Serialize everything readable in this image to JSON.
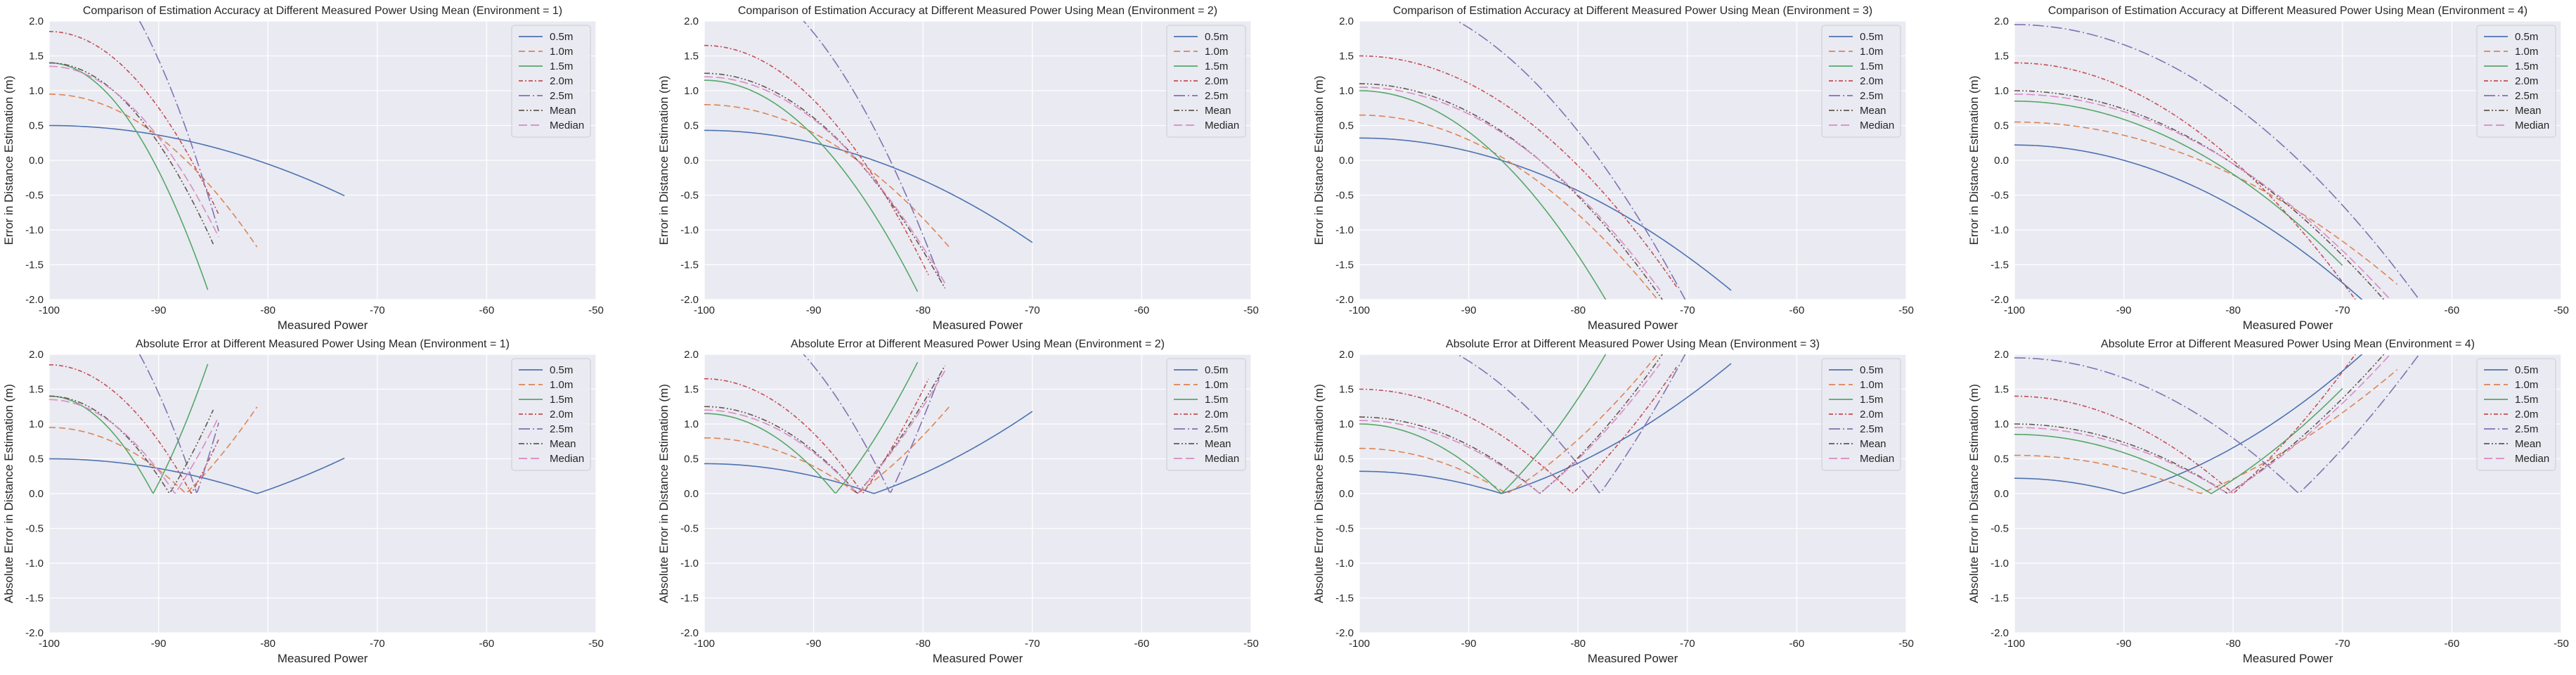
{
  "figure": {
    "rows": 2,
    "cols": 4,
    "facecolor": "#eaeaf2",
    "gridcolor": "#ffffff",
    "textcolor": "#262626"
  },
  "series_styles": [
    {
      "name": "0.5m",
      "color": "#4c72b0",
      "dash": ""
    },
    {
      "name": "1.0m",
      "color": "#dd8452",
      "dash": "9,5"
    },
    {
      "name": "1.5m",
      "color": "#55a868",
      "dash": ""
    },
    {
      "name": "2.0m",
      "color": "#c44e52",
      "dash": "6,3,2,3"
    },
    {
      "name": "2.5m",
      "color": "#8172b3",
      "dash": "16,4,2,4"
    },
    {
      "name": "Mean",
      "color": "#64564f",
      "dash": "8,3,2,3,2,3"
    },
    {
      "name": "Median",
      "color": "#da8bc3",
      "dash": "12,5"
    }
  ],
  "chart_data": [
    {
      "type": "line",
      "absolute": false,
      "title": "Comparison of Estimation Accuracy at Different Measured Power Using Mean (Environment = 1)",
      "xlabel": "Measured Power",
      "ylabel": "Error in Distance Estimation (m)",
      "xlim": [
        -100,
        -50
      ],
      "ylim": [
        -2.0,
        2.0
      ],
      "xticks": [
        -100,
        -90,
        -80,
        -70,
        -60,
        -50
      ],
      "yticks": [
        -2.0,
        -1.5,
        -1.0,
        -0.5,
        0.0,
        0.5,
        1.0,
        1.5,
        2.0
      ],
      "grid": true,
      "legend": "top-right",
      "series": [
        {
          "name": "0.5m",
          "x0": -100,
          "y0": 0.5,
          "x_zero": -81.0,
          "x_end": -73.0
        },
        {
          "name": "1.0m",
          "x0": -100,
          "y0": 0.95,
          "x_zero": -87.5,
          "x_end": -81.0
        },
        {
          "name": "1.5m",
          "x0": -100,
          "y0": 1.4,
          "x_zero": -90.5,
          "x_end": -85.5
        },
        {
          "name": "2.0m",
          "x0": -100,
          "y0": 1.85,
          "x_zero": -87.0,
          "x_end": -84.5
        },
        {
          "name": "2.5m",
          "x0": -100,
          "y0": 3.2,
          "x_zero": -86.5,
          "x_end": -84.5
        },
        {
          "name": "Mean",
          "x0": -100,
          "y0": 1.4,
          "x_zero": -89.0,
          "x_end": -85.0
        },
        {
          "name": "Median",
          "x0": -100,
          "y0": 1.35,
          "x_zero": -88.5,
          "x_end": -84.5
        }
      ]
    },
    {
      "type": "line",
      "absolute": false,
      "title": "Comparison of Estimation Accuracy at Different Measured Power Using Mean (Environment = 2)",
      "xlabel": "Measured Power",
      "ylabel": "Error in Distance Estimation (m)",
      "xlim": [
        -100,
        -50
      ],
      "ylim": [
        -2.0,
        2.0
      ],
      "xticks": [
        -100,
        -90,
        -80,
        -70,
        -60,
        -50
      ],
      "yticks": [
        -2.0,
        -1.5,
        -1.0,
        -0.5,
        0.0,
        0.5,
        1.0,
        1.5,
        2.0
      ],
      "grid": true,
      "legend": "top-right",
      "series": [
        {
          "name": "0.5m",
          "x0": -100,
          "y0": 0.43,
          "x_zero": -84.5,
          "x_end": -70.0
        },
        {
          "name": "1.0m",
          "x0": -100,
          "y0": 0.8,
          "x_zero": -86.0,
          "x_end": -77.5
        },
        {
          "name": "1.5m",
          "x0": -100,
          "y0": 1.15,
          "x_zero": -88.0,
          "x_end": -80.5
        },
        {
          "name": "2.0m",
          "x0": -100,
          "y0": 1.65,
          "x_zero": -85.5,
          "x_end": -79.5
        },
        {
          "name": "2.5m",
          "x0": -100,
          "y0": 2.8,
          "x_zero": -83.0,
          "x_end": -78.5
        },
        {
          "name": "Mean",
          "x0": -100,
          "y0": 1.25,
          "x_zero": -86.0,
          "x_end": -78.0
        },
        {
          "name": "Median",
          "x0": -100,
          "y0": 1.2,
          "x_zero": -86.0,
          "x_end": -78.0
        }
      ]
    },
    {
      "type": "line",
      "absolute": false,
      "title": "Comparison of Estimation Accuracy at Different Measured Power Using Mean (Environment = 3)",
      "xlabel": "Measured Power",
      "ylabel": "Error in Distance Estimation (m)",
      "xlim": [
        -100,
        -50
      ],
      "ylim": [
        -2.0,
        2.0
      ],
      "xticks": [
        -100,
        -90,
        -80,
        -70,
        -60,
        -50
      ],
      "yticks": [
        -2.0,
        -1.5,
        -1.0,
        -0.5,
        0.0,
        0.5,
        1.0,
        1.5,
        2.0
      ],
      "grid": true,
      "legend": "top-right",
      "series": [
        {
          "name": "0.5m",
          "x0": -100,
          "y0": 0.32,
          "x_zero": -87.0,
          "x_end": -66.0
        },
        {
          "name": "1.0m",
          "x0": -100,
          "y0": 0.65,
          "x_zero": -86.5,
          "x_end": -71.0
        },
        {
          "name": "1.5m",
          "x0": -100,
          "y0": 1.0,
          "x_zero": -87.0,
          "x_end": -75.0
        },
        {
          "name": "2.0m",
          "x0": -100,
          "y0": 1.5,
          "x_zero": -80.5,
          "x_end": -71.0
        },
        {
          "name": "2.5m",
          "x0": -100,
          "y0": 2.4,
          "x_zero": -78.0,
          "x_end": -70.0
        },
        {
          "name": "Mean",
          "x0": -100,
          "y0": 1.1,
          "x_zero": -83.5,
          "x_end": -72.0
        },
        {
          "name": "Median",
          "x0": -100,
          "y0": 1.05,
          "x_zero": -83.5,
          "x_end": -72.5
        }
      ]
    },
    {
      "type": "line",
      "absolute": false,
      "title": "Comparison of Estimation Accuracy at Different Measured Power Using Mean (Environment = 4)",
      "xlabel": "Measured Power",
      "ylabel": "Error in Distance Estimation (m)",
      "xlim": [
        -100,
        -50
      ],
      "ylim": [
        -2.0,
        2.0
      ],
      "xticks": [
        -100,
        -90,
        -80,
        -70,
        -60,
        -50
      ],
      "yticks": [
        -2.0,
        -1.5,
        -1.0,
        -0.5,
        0.0,
        0.5,
        1.0,
        1.5,
        2.0
      ],
      "grid": true,
      "legend": "top-right",
      "series": [
        {
          "name": "0.5m",
          "x0": -100,
          "y0": 0.22,
          "x_zero": -90.0,
          "x_end": -62.0
        },
        {
          "name": "1.0m",
          "x0": -100,
          "y0": 0.55,
          "x_zero": -83.0,
          "x_end": -65.0
        },
        {
          "name": "1.5m",
          "x0": -100,
          "y0": 0.85,
          "x_zero": -82.0,
          "x_end": -70.0
        },
        {
          "name": "2.0m",
          "x0": -100,
          "y0": 1.4,
          "x_zero": -80.0,
          "x_end": -66.0
        },
        {
          "name": "2.5m",
          "x0": -100,
          "y0": 1.95,
          "x_zero": -74.0,
          "x_end": -61.0
        },
        {
          "name": "Mean",
          "x0": -100,
          "y0": 1.0,
          "x_zero": -80.5,
          "x_end": -65.0
        },
        {
          "name": "Median",
          "x0": -100,
          "y0": 0.95,
          "x_zero": -80.5,
          "x_end": -65.5
        }
      ]
    },
    {
      "type": "line",
      "absolute": true,
      "title": "Absolute Error at Different Measured Power Using Mean (Environment = 1)",
      "xlabel": "Measured Power",
      "ylabel": "Absolute Error in Distance Estimation (m)",
      "xlim": [
        -100,
        -50
      ],
      "ylim": [
        -2.0,
        2.0
      ],
      "xticks": [
        -100,
        -90,
        -80,
        -70,
        -60,
        -50
      ],
      "yticks": [
        -2.0,
        -1.5,
        -1.0,
        -0.5,
        0.0,
        0.5,
        1.0,
        1.5,
        2.0
      ],
      "grid": true,
      "legend": "top-right",
      "series": [
        {
          "name": "0.5m",
          "x0": -100,
          "y0": 0.5,
          "x_zero": -81.0,
          "x_end": -73.0
        },
        {
          "name": "1.0m",
          "x0": -100,
          "y0": 0.95,
          "x_zero": -87.5,
          "x_end": -81.0
        },
        {
          "name": "1.5m",
          "x0": -100,
          "y0": 1.4,
          "x_zero": -90.5,
          "x_end": -85.5
        },
        {
          "name": "2.0m",
          "x0": -100,
          "y0": 1.85,
          "x_zero": -87.0,
          "x_end": -84.5
        },
        {
          "name": "2.5m",
          "x0": -100,
          "y0": 3.2,
          "x_zero": -86.5,
          "x_end": -84.5
        },
        {
          "name": "Mean",
          "x0": -100,
          "y0": 1.4,
          "x_zero": -89.0,
          "x_end": -85.0
        },
        {
          "name": "Median",
          "x0": -100,
          "y0": 1.35,
          "x_zero": -88.5,
          "x_end": -84.5
        }
      ]
    },
    {
      "type": "line",
      "absolute": true,
      "title": "Absolute Error at Different Measured Power Using Mean (Environment = 2)",
      "xlabel": "Measured Power",
      "ylabel": "Absolute Error in Distance Estimation (m)",
      "xlim": [
        -100,
        -50
      ],
      "ylim": [
        -2.0,
        2.0
      ],
      "xticks": [
        -100,
        -90,
        -80,
        -70,
        -60,
        -50
      ],
      "yticks": [
        -2.0,
        -1.5,
        -1.0,
        -0.5,
        0.0,
        0.5,
        1.0,
        1.5,
        2.0
      ],
      "grid": true,
      "legend": "top-right",
      "series": [
        {
          "name": "0.5m",
          "x0": -100,
          "y0": 0.43,
          "x_zero": -84.5,
          "x_end": -70.0
        },
        {
          "name": "1.0m",
          "x0": -100,
          "y0": 0.8,
          "x_zero": -86.0,
          "x_end": -77.5
        },
        {
          "name": "1.5m",
          "x0": -100,
          "y0": 1.15,
          "x_zero": -88.0,
          "x_end": -80.5
        },
        {
          "name": "2.0m",
          "x0": -100,
          "y0": 1.65,
          "x_zero": -85.5,
          "x_end": -79.5
        },
        {
          "name": "2.5m",
          "x0": -100,
          "y0": 2.8,
          "x_zero": -83.0,
          "x_end": -78.5
        },
        {
          "name": "Mean",
          "x0": -100,
          "y0": 1.25,
          "x_zero": -86.0,
          "x_end": -78.0
        },
        {
          "name": "Median",
          "x0": -100,
          "y0": 1.2,
          "x_zero": -86.0,
          "x_end": -78.0
        }
      ]
    },
    {
      "type": "line",
      "absolute": true,
      "title": "Absolute Error at Different Measured Power Using Mean (Environment = 3)",
      "xlabel": "Measured Power",
      "ylabel": "Absolute Error in Distance Estimation (m)",
      "xlim": [
        -100,
        -50
      ],
      "ylim": [
        -2.0,
        2.0
      ],
      "xticks": [
        -100,
        -90,
        -80,
        -70,
        -60,
        -50
      ],
      "yticks": [
        -2.0,
        -1.5,
        -1.0,
        -0.5,
        0.0,
        0.5,
        1.0,
        1.5,
        2.0
      ],
      "grid": true,
      "legend": "top-right",
      "series": [
        {
          "name": "0.5m",
          "x0": -100,
          "y0": 0.32,
          "x_zero": -87.0,
          "x_end": -66.0
        },
        {
          "name": "1.0m",
          "x0": -100,
          "y0": 0.65,
          "x_zero": -86.5,
          "x_end": -71.0
        },
        {
          "name": "1.5m",
          "x0": -100,
          "y0": 1.0,
          "x_zero": -87.0,
          "x_end": -75.0
        },
        {
          "name": "2.0m",
          "x0": -100,
          "y0": 1.5,
          "x_zero": -80.5,
          "x_end": -71.0
        },
        {
          "name": "2.5m",
          "x0": -100,
          "y0": 2.4,
          "x_zero": -78.0,
          "x_end": -70.0
        },
        {
          "name": "Mean",
          "x0": -100,
          "y0": 1.1,
          "x_zero": -83.5,
          "x_end": -72.0
        },
        {
          "name": "Median",
          "x0": -100,
          "y0": 1.05,
          "x_zero": -83.5,
          "x_end": -72.5
        }
      ]
    },
    {
      "type": "line",
      "absolute": true,
      "title": "Absolute Error at Different Measured Power Using Mean (Environment = 4)",
      "xlabel": "Measured Power",
      "ylabel": "Absolute Error in Distance Estimation (m)",
      "xlim": [
        -100,
        -50
      ],
      "ylim": [
        -2.0,
        2.0
      ],
      "xticks": [
        -100,
        -90,
        -80,
        -70,
        -60,
        -50
      ],
      "yticks": [
        -2.0,
        -1.5,
        -1.0,
        -0.5,
        0.0,
        0.5,
        1.0,
        1.5,
        2.0
      ],
      "grid": true,
      "legend": "top-right",
      "series": [
        {
          "name": "0.5m",
          "x0": -100,
          "y0": 0.22,
          "x_zero": -90.0,
          "x_end": -62.0
        },
        {
          "name": "1.0m",
          "x0": -100,
          "y0": 0.55,
          "x_zero": -83.0,
          "x_end": -65.0
        },
        {
          "name": "1.5m",
          "x0": -100,
          "y0": 0.85,
          "x_zero": -82.0,
          "x_end": -70.0
        },
        {
          "name": "2.0m",
          "x0": -100,
          "y0": 1.4,
          "x_zero": -80.0,
          "x_end": -66.0
        },
        {
          "name": "2.5m",
          "x0": -100,
          "y0": 1.95,
          "x_zero": -74.0,
          "x_end": -61.0
        },
        {
          "name": "Mean",
          "x0": -100,
          "y0": 1.0,
          "x_zero": -80.5,
          "x_end": -65.0
        },
        {
          "name": "Median",
          "x0": -100,
          "y0": 0.95,
          "x_zero": -80.5,
          "x_end": -65.5
        }
      ]
    }
  ]
}
